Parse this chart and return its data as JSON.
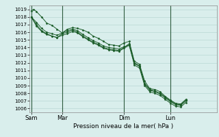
{
  "xlabel": "Pression niveau de la mer( hPa )",
  "ylim": [
    1005.5,
    1019.5
  ],
  "yticks": [
    1006,
    1007,
    1008,
    1009,
    1010,
    1011,
    1012,
    1013,
    1014,
    1015,
    1016,
    1017,
    1018,
    1019
  ],
  "xtick_labels": [
    "Sam",
    "Mar",
    "Dim",
    "Lun"
  ],
  "xtick_positions": [
    0,
    36,
    108,
    162
  ],
  "bg_color": "#d9eeec",
  "grid_color": "#b8d8d4",
  "line_color": "#1a5c28",
  "total_hours": 216,
  "series": [
    [
      0,
      1018.8,
      3,
      1019.0,
      6,
      1018.7,
      12,
      1018.0,
      18,
      1017.2,
      24,
      1016.9,
      30,
      1016.4,
      36,
      1015.9,
      42,
      1016.4,
      48,
      1016.6,
      54,
      1016.5,
      60,
      1016.3,
      66,
      1016.0,
      72,
      1015.5,
      78,
      1015.2,
      84,
      1014.8,
      90,
      1014.4,
      96,
      1014.3,
      102,
      1014.2,
      108,
      1014.6,
      114,
      1014.8,
      120,
      1012.2,
      126,
      1011.8,
      132,
      1009.6,
      138,
      1008.6,
      144,
      1008.5,
      150,
      1008.2,
      156,
      1007.6,
      162,
      1007.1,
      168,
      1006.7,
      174,
      1006.6,
      180,
      1007.2
    ],
    [
      0,
      1018.0,
      6,
      1017.3,
      12,
      1016.5,
      18,
      1016.0,
      24,
      1015.8,
      30,
      1015.6,
      36,
      1015.9,
      42,
      1016.2,
      48,
      1016.4,
      54,
      1016.2,
      60,
      1015.7,
      66,
      1015.3,
      72,
      1014.9,
      78,
      1014.6,
      84,
      1014.2,
      90,
      1014.0,
      96,
      1013.9,
      102,
      1013.8,
      108,
      1014.1,
      114,
      1014.3,
      120,
      1011.9,
      126,
      1011.5,
      132,
      1009.2,
      138,
      1008.4,
      144,
      1008.2,
      150,
      1007.9,
      156,
      1007.4,
      162,
      1006.9,
      168,
      1006.5,
      174,
      1006.4,
      180,
      1007.0
    ],
    [
      0,
      1018.0,
      6,
      1016.8,
      12,
      1016.1,
      18,
      1015.7,
      24,
      1015.5,
      30,
      1015.3,
      36,
      1015.6,
      42,
      1015.8,
      48,
      1016.1,
      54,
      1015.9,
      60,
      1015.4,
      66,
      1015.0,
      72,
      1014.6,
      78,
      1014.3,
      84,
      1013.9,
      90,
      1013.7,
      96,
      1013.6,
      102,
      1013.5,
      108,
      1013.9,
      114,
      1014.3,
      120,
      1011.7,
      126,
      1011.3,
      132,
      1009.0,
      138,
      1008.2,
      144,
      1008.0,
      150,
      1007.7,
      156,
      1007.2,
      162,
      1006.7,
      168,
      1006.3,
      174,
      1006.2,
      180,
      1006.8
    ],
    [
      0,
      1018.0,
      6,
      1017.0,
      12,
      1016.2,
      18,
      1015.8,
      24,
      1015.5,
      30,
      1015.3,
      36,
      1015.8,
      42,
      1016.0,
      48,
      1016.3,
      54,
      1016.0,
      60,
      1015.5,
      66,
      1015.1,
      72,
      1014.7,
      78,
      1014.4,
      84,
      1014.0,
      90,
      1013.8,
      96,
      1013.7,
      102,
      1013.6,
      108,
      1014.0,
      114,
      1014.5,
      120,
      1012.0,
      126,
      1011.6,
      132,
      1009.3,
      138,
      1008.5,
      144,
      1008.3,
      150,
      1008.0,
      156,
      1007.5,
      162,
      1007.0,
      168,
      1006.6,
      174,
      1006.5,
      180,
      1007.1
    ]
  ]
}
